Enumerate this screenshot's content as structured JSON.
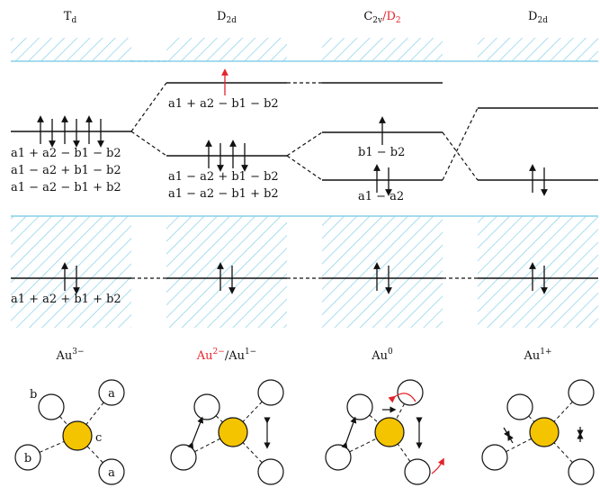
{
  "columns": [
    {
      "symmetry": "T",
      "sym_sub": "d"
    },
    {
      "symmetry": "D",
      "sym_sub": "2d"
    },
    {
      "symmetry": "C",
      "sym_sub": "2v",
      "alt": "/D",
      "alt_sub": "2"
    },
    {
      "symmetry": "D",
      "sym_sub": "2d"
    }
  ],
  "levels": {
    "col1_top": [
      "a1 + a2 − b1 − b2",
      "a1 − a2 + b1 − b2",
      "a1 − a2 − b1 + b2"
    ],
    "col2_upper": "a1 + a2 − b1 − b2",
    "col2_lower": [
      "a1 − a2 + b1 − b2",
      "a1 − a2 − b1 + b2"
    ],
    "col3_upper": "b1 − b2",
    "col3_lower": "a1 − a2",
    "bottom": "a1 + a2 + b1 + b2"
  },
  "charges": [
    {
      "base": "Au",
      "sup": "3−"
    },
    {
      "base": "Au",
      "sup": "2−",
      "alt_base": "/Au",
      "alt_sup": "1−"
    },
    {
      "base": "Au",
      "sup": "0"
    },
    {
      "base": "Au",
      "sup": "1+"
    }
  ],
  "site_labels": {
    "b_top": "b",
    "a_top": "a",
    "b_bottom": "b",
    "a_bottom": "a",
    "center": "c"
  },
  "colors": {
    "band": "#87cfe8",
    "gold": "#f5c400",
    "red": "#e4242b",
    "line": "#111111"
  }
}
